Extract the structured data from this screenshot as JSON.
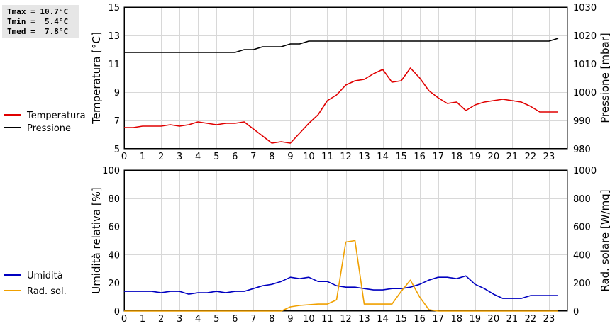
{
  "stats": {
    "tmax": "Tmax = 10.7°C",
    "tmin": "Tmin =  5.4°C",
    "tmed": "Tmed =  7.8°C"
  },
  "chart_data": [
    {
      "type": "line",
      "x_ticks": [
        0,
        1,
        2,
        3,
        4,
        5,
        6,
        7,
        8,
        9,
        10,
        11,
        12,
        13,
        14,
        15,
        16,
        17,
        18,
        19,
        20,
        21,
        22,
        23
      ],
      "xlim": [
        0,
        24
      ],
      "ylabel_left": "Temperatura [°C]",
      "ylim_left": [
        5,
        15
      ],
      "yticks_left": [
        5,
        7,
        9,
        11,
        13,
        15
      ],
      "ylabel_right": "Pressione [mbar]",
      "ylim_right": [
        980,
        1030
      ],
      "yticks_right": [
        980,
        990,
        1000,
        1010,
        1020,
        1030
      ],
      "grid": true,
      "legend": "left",
      "series": [
        {
          "name": "Temperatura",
          "color": "#e00000",
          "axis": "left",
          "x": [
            0,
            0.5,
            1,
            1.5,
            2,
            2.5,
            3,
            3.5,
            4,
            4.5,
            5,
            5.5,
            6,
            6.5,
            7,
            7.5,
            8,
            8.5,
            9,
            9.5,
            10,
            10.5,
            11,
            11.5,
            12,
            12.5,
            13,
            13.5,
            14,
            14.5,
            15,
            15.5,
            16,
            16.5,
            17,
            17.5,
            18,
            18.5,
            19,
            19.5,
            20,
            20.5,
            21,
            21.5,
            22,
            22.5,
            23,
            23.5
          ],
          "y": [
            6.5,
            6.5,
            6.6,
            6.6,
            6.6,
            6.7,
            6.6,
            6.7,
            6.9,
            6.8,
            6.7,
            6.8,
            6.8,
            6.9,
            6.4,
            5.9,
            5.4,
            5.5,
            5.4,
            6.1,
            6.8,
            7.4,
            8.4,
            8.8,
            9.5,
            9.8,
            9.9,
            10.3,
            10.6,
            9.7,
            9.8,
            10.7,
            10.0,
            9.1,
            8.6,
            8.2,
            8.3,
            7.7,
            8.1,
            8.3,
            8.4,
            8.5,
            8.4,
            8.3,
            8.0,
            7.6,
            7.6,
            7.6
          ]
        },
        {
          "name": "Pressione",
          "color": "#000000",
          "axis": "right",
          "x": [
            0,
            0.5,
            1,
            1.5,
            2,
            2.5,
            3,
            3.5,
            4,
            4.5,
            5,
            5.5,
            6,
            6.5,
            7,
            7.5,
            8,
            8.5,
            9,
            9.5,
            10,
            10.5,
            11,
            11.5,
            12,
            12.5,
            13,
            13.5,
            14,
            14.5,
            15,
            15.5,
            16,
            16.5,
            17,
            17.5,
            18,
            18.5,
            19,
            19.5,
            20,
            20.5,
            21,
            21.5,
            22,
            22.5,
            23,
            23.5
          ],
          "y": [
            1014,
            1014,
            1014,
            1014,
            1014,
            1014,
            1014,
            1014,
            1014,
            1014,
            1014,
            1014,
            1014,
            1015,
            1015,
            1016,
            1016,
            1016,
            1017,
            1017,
            1018,
            1018,
            1018,
            1018,
            1018,
            1018,
            1018,
            1018,
            1018,
            1018,
            1018,
            1018,
            1018,
            1018,
            1018,
            1018,
            1018,
            1018,
            1018,
            1018,
            1018,
            1018,
            1018,
            1018,
            1018,
            1018,
            1018,
            1019
          ]
        }
      ]
    },
    {
      "type": "line",
      "x_ticks": [
        0,
        1,
        2,
        3,
        4,
        5,
        6,
        7,
        8,
        9,
        10,
        11,
        12,
        13,
        14,
        15,
        16,
        17,
        18,
        19,
        20,
        21,
        22,
        23
      ],
      "xlim": [
        0,
        24
      ],
      "ylabel_left": "Umidità relativa [%]",
      "ylim_left": [
        0,
        100
      ],
      "yticks_left": [
        0,
        20,
        40,
        60,
        80,
        100
      ],
      "ylabel_right": "Rad. solare [W/mq]",
      "ylim_right": [
        0,
        1000
      ],
      "yticks_right": [
        0,
        200,
        400,
        600,
        800,
        1000
      ],
      "grid": true,
      "legend": "left",
      "series": [
        {
          "name": "Umidità",
          "color": "#0000c0",
          "axis": "left",
          "x": [
            0,
            0.5,
            1,
            1.5,
            2,
            2.5,
            3,
            3.5,
            4,
            4.5,
            5,
            5.5,
            6,
            6.5,
            7,
            7.5,
            8,
            8.5,
            9,
            9.5,
            10,
            10.5,
            11,
            11.5,
            12,
            12.5,
            13,
            13.5,
            14,
            14.5,
            15,
            15.5,
            16,
            16.5,
            17,
            17.5,
            18,
            18.5,
            19,
            19.5,
            20,
            20.5,
            21,
            21.5,
            22,
            22.5,
            23,
            23.5
          ],
          "y": [
            14,
            14,
            14,
            14,
            13,
            14,
            14,
            12,
            13,
            13,
            14,
            13,
            14,
            14,
            16,
            18,
            19,
            21,
            24,
            23,
            24,
            21,
            21,
            18,
            17,
            17,
            16,
            15,
            15,
            16,
            16,
            17,
            19,
            22,
            24,
            24,
            23,
            25,
            19,
            16,
            12,
            9,
            9,
            9,
            11,
            11,
            11,
            11
          ]
        },
        {
          "name": "Rad. sol.",
          "color": "#f0a000",
          "axis": "right",
          "x": [
            0,
            0.5,
            1,
            1.5,
            2,
            2.5,
            3,
            3.5,
            4,
            4.5,
            5,
            5.5,
            6,
            6.5,
            7,
            7.5,
            8,
            8.5,
            9,
            9.5,
            10,
            10.5,
            11,
            11.5,
            12,
            12.5,
            13,
            13.5,
            14,
            14.5,
            15,
            15.5,
            16,
            16.5,
            17,
            17.5,
            18,
            18.5,
            19,
            19.5,
            20,
            20.5,
            21,
            21.5,
            22,
            22.5,
            23,
            23.5
          ],
          "y": [
            0,
            0,
            0,
            0,
            0,
            0,
            0,
            0,
            0,
            0,
            0,
            0,
            0,
            0,
            0,
            0,
            0,
            0,
            30,
            40,
            45,
            50,
            50,
            80,
            490,
            500,
            50,
            50,
            50,
            50,
            140,
            220,
            100,
            10,
            0,
            0,
            0,
            0,
            0,
            0,
            0,
            0,
            0,
            0,
            0,
            0,
            0,
            0
          ]
        }
      ]
    }
  ]
}
